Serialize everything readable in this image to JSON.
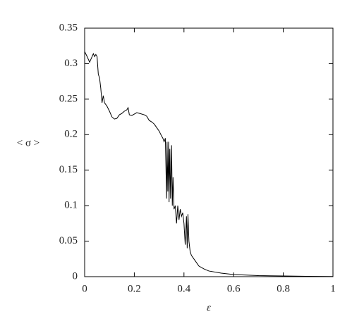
{
  "chart_data": {
    "type": "line",
    "xlabel": "ε",
    "ylabel": "< σ >",
    "xlim": [
      0,
      1
    ],
    "xticks": [
      0,
      0.2,
      0.4,
      0.6,
      0.8,
      1
    ],
    "ylim": [
      0,
      0.35
    ],
    "yticks": [
      0,
      0.05,
      0.1,
      0.15,
      0.2,
      0.25,
      0.3,
      0.35
    ],
    "series": [
      {
        "color": "#000000",
        "x": [
          0,
          0.01,
          0.02,
          0.03,
          0.035,
          0.04,
          0.045,
          0.05,
          0.055,
          0.06,
          0.065,
          0.07,
          0.075,
          0.08,
          0.09,
          0.1,
          0.11,
          0.12,
          0.13,
          0.14,
          0.15,
          0.16,
          0.17,
          0.175,
          0.18,
          0.19,
          0.2,
          0.21,
          0.22,
          0.24,
          0.25,
          0.26,
          0.27,
          0.28,
          0.29,
          0.3,
          0.31,
          0.315,
          0.32,
          0.325,
          0.33,
          0.332,
          0.335,
          0.338,
          0.34,
          0.343,
          0.346,
          0.35,
          0.353,
          0.356,
          0.36,
          0.365,
          0.37,
          0.375,
          0.38,
          0.385,
          0.39,
          0.395,
          0.4,
          0.405,
          0.41,
          0.413,
          0.416,
          0.42,
          0.425,
          0.43,
          0.44,
          0.45,
          0.46,
          0.48,
          0.5,
          0.55,
          0.6,
          0.7,
          0.8,
          0.9,
          1
        ],
        "values": [
          0.317,
          0.31,
          0.302,
          0.31,
          0.314,
          0.31,
          0.313,
          0.31,
          0.285,
          0.28,
          0.265,
          0.245,
          0.255,
          0.245,
          0.24,
          0.233,
          0.225,
          0.222,
          0.223,
          0.228,
          0.23,
          0.233,
          0.235,
          0.238,
          0.228,
          0.227,
          0.229,
          0.231,
          0.23,
          0.228,
          0.226,
          0.22,
          0.218,
          0.215,
          0.21,
          0.205,
          0.198,
          0.195,
          0.19,
          0.195,
          0.11,
          0.19,
          0.12,
          0.19,
          0.105,
          0.18,
          0.11,
          0.185,
          0.1,
          0.14,
          0.095,
          0.1,
          0.075,
          0.1,
          0.08,
          0.095,
          0.085,
          0.09,
          0.075,
          0.045,
          0.085,
          0.04,
          0.088,
          0.05,
          0.035,
          0.03,
          0.025,
          0.02,
          0.015,
          0.011,
          0.008,
          0.005,
          0.003,
          0.0015,
          0.001,
          0.0005,
          0.0003
        ]
      }
    ]
  }
}
